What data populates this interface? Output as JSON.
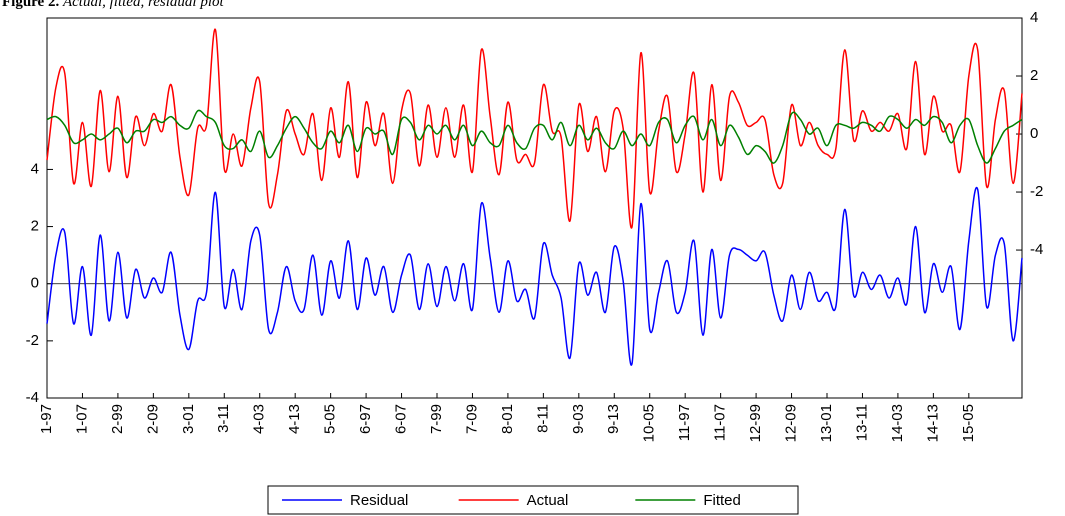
{
  "chart_data": {
    "type": "line",
    "title": "Figure 2.",
    "subtitle": "Actual, fitted, residual plot",
    "categories": [
      "1-97",
      null,
      null,
      null,
      "1-07",
      null,
      null,
      null,
      "2-99",
      null,
      null,
      null,
      "2-09",
      null,
      null,
      null,
      "3-01",
      null,
      null,
      null,
      "3-11",
      null,
      null,
      null,
      "4-03",
      null,
      null,
      null,
      "4-13",
      null,
      null,
      null,
      "5-05",
      null,
      null,
      null,
      "6-97",
      null,
      null,
      null,
      "6-07",
      null,
      null,
      null,
      "7-99",
      null,
      null,
      null,
      "7-09",
      null,
      null,
      null,
      "8-01",
      null,
      null,
      null,
      "8-11",
      null,
      null,
      null,
      "9-03",
      null,
      null,
      null,
      "9-13",
      null,
      null,
      null,
      "10-05",
      null,
      null,
      null,
      "11-97",
      null,
      null,
      null,
      "11-07",
      null,
      null,
      null,
      "12-99",
      null,
      null,
      null,
      "12-09",
      null,
      null,
      null,
      "13-01",
      null,
      null,
      null,
      "13-11",
      null,
      null,
      null,
      "14-03",
      null,
      null,
      null,
      "14-13",
      null,
      null,
      null,
      "15-05",
      null,
      null,
      null,
      null,
      null,
      null
    ],
    "series": [
      {
        "name": "Residual",
        "color": "#0000ff",
        "axis": "y",
        "values": [
          -1.4,
          1.0,
          1.8,
          -1.4,
          0.6,
          -1.8,
          1.7,
          -1.3,
          1.1,
          -1.2,
          0.5,
          -0.5,
          0.2,
          -0.3,
          1.1,
          -1.1,
          -2.3,
          -0.6,
          -0.3,
          3.2,
          -0.8,
          0.5,
          -0.9,
          1.5,
          1.7,
          -1.6,
          -1.0,
          0.6,
          -0.6,
          -0.9,
          1.0,
          -1.1,
          0.8,
          -0.5,
          1.5,
          -0.9,
          0.9,
          -0.4,
          0.6,
          -1.0,
          0.3,
          1.0,
          -0.9,
          0.7,
          -0.8,
          0.6,
          -0.6,
          0.7,
          -0.9,
          2.8,
          0.9,
          -1.0,
          0.8,
          -0.6,
          -0.2,
          -1.2,
          1.4,
          0.3,
          -0.5,
          -2.6,
          0.7,
          -0.4,
          0.4,
          -1.0,
          1.3,
          0.1,
          -2.8,
          2.8,
          -1.6,
          -0.3,
          0.8,
          -1.0,
          -0.3,
          1.5,
          -1.8,
          1.2,
          -1.2,
          1.0,
          1.2,
          1.0,
          0.8,
          1.1,
          -0.4,
          -1.3,
          0.3,
          -0.9,
          0.4,
          -0.6,
          -0.3,
          -0.8,
          2.6,
          -0.4,
          0.4,
          -0.2,
          0.3,
          -0.5,
          0.2,
          -0.7,
          2.0,
          -1.0,
          0.7,
          -0.3,
          0.6,
          -1.6,
          1.5,
          3.3,
          -0.8,
          1.0,
          1.4,
          -2.0,
          0.9
        ]
      },
      {
        "name": "Actual",
        "color": "#ff0000",
        "axis": "y2",
        "values": [
          -0.9,
          1.6,
          2.1,
          -1.7,
          0.4,
          -1.8,
          1.5,
          -1.3,
          1.3,
          -1.5,
          0.6,
          -0.4,
          0.7,
          0.1,
          1.7,
          -0.8,
          -2.1,
          0.2,
          0.3,
          3.6,
          -1.2,
          0.0,
          -1.1,
          0.9,
          1.8,
          -2.4,
          -1.4,
          0.8,
          0.0,
          -0.7,
          0.7,
          -1.6,
          0.9,
          -0.8,
          1.8,
          -1.5,
          1.1,
          -0.4,
          0.7,
          -1.7,
          0.8,
          1.4,
          -1.1,
          1.0,
          -0.8,
          0.9,
          -0.8,
          1.0,
          -1.3,
          2.9,
          0.6,
          -1.4,
          1.1,
          -0.9,
          -0.7,
          -1.0,
          1.7,
          0.1,
          -0.1,
          -3.0,
          1.0,
          -0.6,
          0.6,
          -1.3,
          0.8,
          0.2,
          -3.2,
          2.8,
          -2.0,
          0.1,
          1.3,
          -1.3,
          0.0,
          2.1,
          -2.0,
          1.7,
          -1.6,
          1.3,
          1.1,
          0.3,
          0.4,
          0.5,
          -1.4,
          -1.7,
          1.0,
          -0.4,
          0.4,
          -0.4,
          -0.7,
          -0.5,
          2.9,
          -0.2,
          0.8,
          0.1,
          0.4,
          0.1,
          0.7,
          -0.5,
          2.5,
          -0.7,
          1.3,
          0.1,
          0.3,
          -1.3,
          2.0,
          2.9,
          -1.8,
          0.5,
          1.5,
          -1.7,
          1.4
        ]
      },
      {
        "name": "Fitted",
        "color": "#008000",
        "axis": "y2",
        "values": [
          0.5,
          0.6,
          0.3,
          -0.3,
          -0.2,
          0.0,
          -0.2,
          0.0,
          0.2,
          -0.3,
          0.1,
          0.1,
          0.5,
          0.4,
          0.6,
          0.3,
          0.2,
          0.8,
          0.6,
          0.4,
          -0.4,
          -0.5,
          -0.2,
          -0.6,
          0.1,
          -0.8,
          -0.4,
          0.2,
          0.6,
          0.2,
          -0.3,
          -0.5,
          0.1,
          -0.3,
          0.3,
          -0.6,
          0.2,
          0.0,
          0.1,
          -0.7,
          0.5,
          0.4,
          -0.2,
          0.3,
          0.0,
          0.3,
          -0.2,
          0.3,
          -0.4,
          0.1,
          -0.3,
          -0.4,
          0.3,
          -0.3,
          -0.5,
          0.2,
          0.3,
          -0.2,
          0.4,
          -0.4,
          0.3,
          -0.2,
          0.2,
          -0.3,
          -0.5,
          0.1,
          -0.4,
          0.0,
          -0.4,
          0.4,
          0.5,
          -0.3,
          0.3,
          0.6,
          -0.2,
          0.5,
          -0.4,
          0.3,
          -0.1,
          -0.7,
          -0.4,
          -0.6,
          -1.0,
          -0.4,
          0.7,
          0.5,
          0.0,
          0.2,
          -0.4,
          0.3,
          0.3,
          0.2,
          0.4,
          0.3,
          0.1,
          0.6,
          0.5,
          0.2,
          0.5,
          0.3,
          0.6,
          0.4,
          -0.3,
          0.3,
          0.5,
          -0.4,
          -1.0,
          -0.5,
          0.1,
          0.3,
          0.5
        ]
      }
    ],
    "ylim": [
      -4,
      9.3
    ],
    "yticks": [
      -4,
      -2,
      0,
      2,
      4
    ],
    "y2lim": [
      -9.1,
      4
    ],
    "y2ticks": [
      -4,
      -2,
      0,
      2,
      4
    ],
    "legend": "bottom"
  }
}
